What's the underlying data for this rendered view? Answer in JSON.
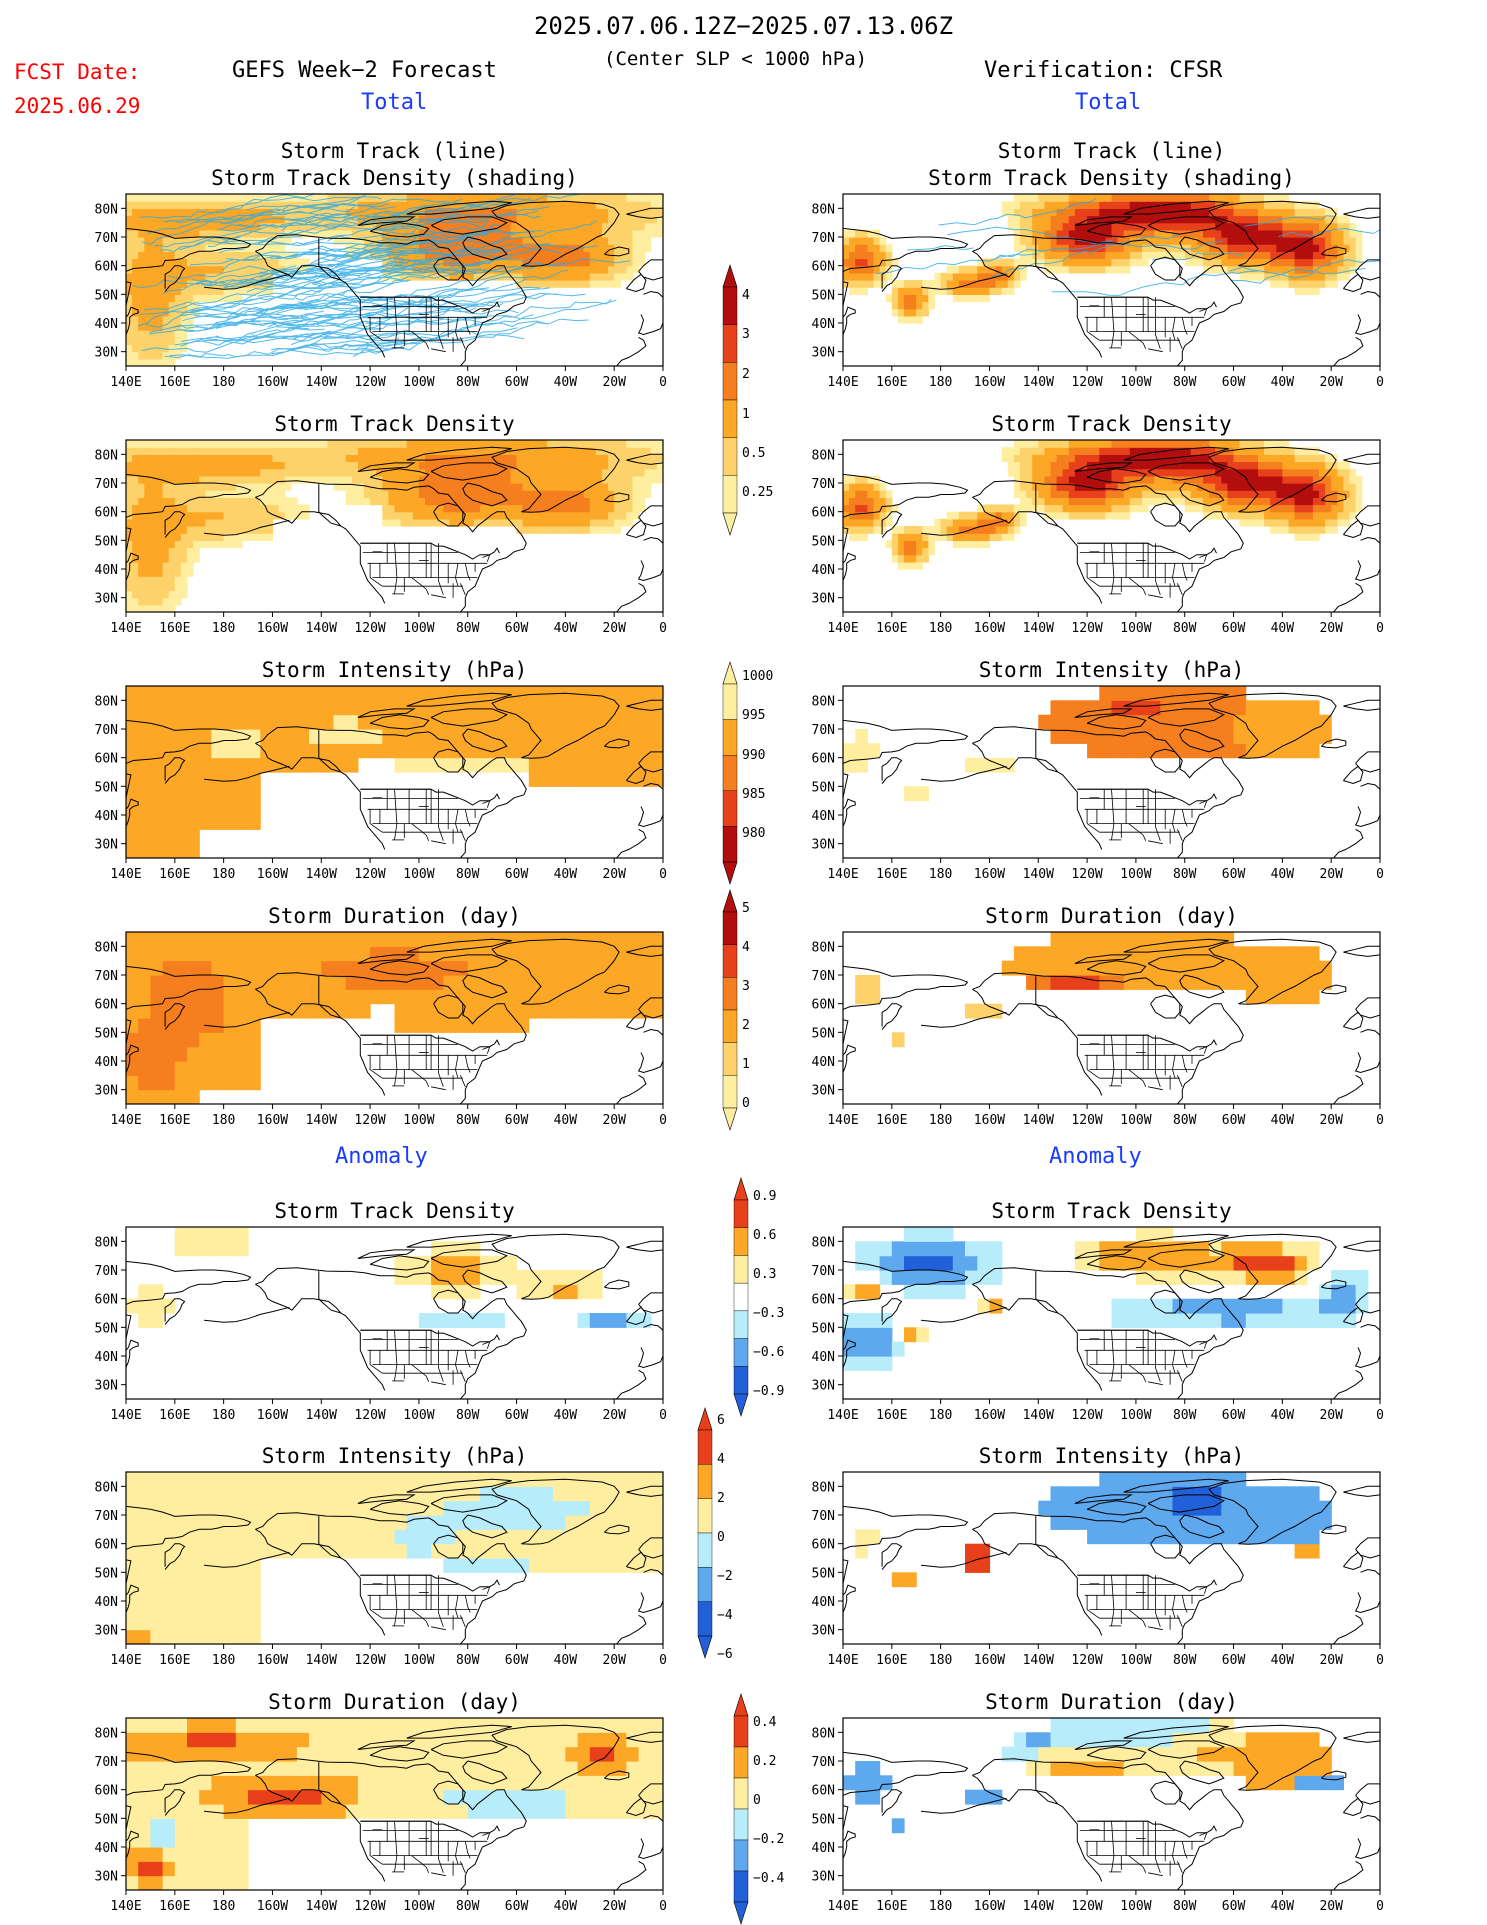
{
  "header": {
    "date_range": "2025.07.06.12Z−2025.07.13.06Z",
    "fcst_label": "FCST Date:",
    "fcst_date": "2025.06.29",
    "left_title": "GEFS Week−2 Forecast",
    "center_sub": "(Center SLP < 1000 hPa)",
    "right_title": "Verification: CFSR"
  },
  "sections": {
    "total": "Total",
    "anomaly": "Anomaly"
  },
  "colors": {
    "yellow": "#ffeea0",
    "lightorange": "#fdd26a",
    "orange": "#fca726",
    "darkorange": "#f57e1e",
    "red": "#e8401a",
    "darkred": "#b30e0e",
    "lightblue": "#b7ecfb",
    "midblue": "#5ea8ee",
    "blue": "#2160d8",
    "track_line": "#29a9e6"
  },
  "chart_data": [
    {
      "id": "tl-fcst",
      "type": "heatmap",
      "title": "Storm Track (line)",
      "subtitle": "Storm Track Density (shading)",
      "source": "GEFS",
      "section": "Total",
      "xlabels": [
        "140E",
        "160E",
        "180",
        "160W",
        "140W",
        "120W",
        "100W",
        "80W",
        "60W",
        "40W",
        "20W",
        "0"
      ],
      "ylabels": [
        "80N",
        "70N",
        "60N",
        "50N",
        "40N",
        "30N"
      ],
      "field": "track_fcst"
    },
    {
      "id": "tl-obs",
      "type": "heatmap",
      "title": "Storm Track (line)",
      "subtitle": "Storm Track Density (shading)",
      "source": "CFSR",
      "section": "Total",
      "xlabels": [
        "140E",
        "160E",
        "180",
        "160W",
        "140W",
        "120W",
        "100W",
        "80W",
        "60W",
        "40W",
        "20W",
        "0"
      ],
      "ylabels": [
        "80N",
        "70N",
        "60N",
        "50N",
        "40N",
        "30N"
      ],
      "field": "track_obs"
    },
    {
      "id": "den-fcst",
      "type": "heatmap",
      "title": "Storm Track Density",
      "xlabels": [
        "140E",
        "160E",
        "180",
        "160W",
        "140W",
        "120W",
        "100W",
        "80W",
        "60W",
        "40W",
        "20W",
        "0"
      ],
      "ylabels": [
        "80N",
        "70N",
        "60N",
        "50N",
        "40N",
        "30N"
      ]
    },
    {
      "id": "den-obs",
      "type": "heatmap",
      "title": "Storm Track Density",
      "xlabels": [
        "140E",
        "160E",
        "180",
        "160W",
        "140W",
        "120W",
        "100W",
        "80W",
        "60W",
        "40W",
        "20W",
        "0"
      ],
      "ylabels": [
        "80N",
        "70N",
        "60N",
        "50N",
        "40N",
        "30N"
      ]
    },
    {
      "id": "int-fcst",
      "type": "heatmap",
      "title": "Storm Intensity (hPa)",
      "xlabels": [
        "140E",
        "160E",
        "180",
        "160W",
        "140W",
        "120W",
        "100W",
        "80W",
        "60W",
        "40W",
        "20W",
        "0"
      ],
      "ylabels": [
        "80N",
        "70N",
        "60N",
        "50N",
        "40N",
        "30N"
      ]
    },
    {
      "id": "int-obs",
      "type": "heatmap",
      "title": "Storm Intensity (hPa)",
      "xlabels": [
        "140E",
        "160E",
        "180",
        "160W",
        "140W",
        "120W",
        "100W",
        "80W",
        "60W",
        "40W",
        "20W",
        "0"
      ],
      "ylabels": [
        "80N",
        "70N",
        "60N",
        "50N",
        "40N",
        "30N"
      ]
    },
    {
      "id": "dur-fcst",
      "type": "heatmap",
      "title": "Storm Duration (day)",
      "xlabels": [
        "140E",
        "160E",
        "180",
        "160W",
        "140W",
        "120W",
        "100W",
        "80W",
        "60W",
        "40W",
        "20W",
        "0"
      ],
      "ylabels": [
        "80N",
        "70N",
        "60N",
        "50N",
        "40N",
        "30N"
      ]
    },
    {
      "id": "dur-obs",
      "type": "heatmap",
      "title": "Storm Duration (day)",
      "xlabels": [
        "140E",
        "160E",
        "180",
        "160W",
        "140W",
        "120W",
        "100W",
        "80W",
        "60W",
        "40W",
        "20W",
        "0"
      ],
      "ylabels": [
        "80N",
        "70N",
        "60N",
        "50N",
        "40N",
        "30N"
      ]
    },
    {
      "id": "aden-fcst",
      "type": "heatmap",
      "title": "Storm Track Density",
      "section": "Anomaly",
      "xlabels": [
        "140E",
        "160E",
        "180",
        "160W",
        "140W",
        "120W",
        "100W",
        "80W",
        "60W",
        "40W",
        "20W",
        "0"
      ],
      "ylabels": [
        "80N",
        "70N",
        "60N",
        "50N",
        "40N",
        "30N"
      ]
    },
    {
      "id": "aden-obs",
      "type": "heatmap",
      "title": "Storm Track Density",
      "section": "Anomaly",
      "xlabels": [
        "140E",
        "160E",
        "180",
        "160W",
        "140W",
        "120W",
        "100W",
        "80W",
        "60W",
        "40W",
        "20W",
        "0"
      ],
      "ylabels": [
        "80N",
        "70N",
        "60N",
        "50N",
        "40N",
        "30N"
      ]
    },
    {
      "id": "aint-fcst",
      "type": "heatmap",
      "title": "Storm Intensity (hPa)",
      "xlabels": [
        "140E",
        "160E",
        "180",
        "160W",
        "140W",
        "120W",
        "100W",
        "80W",
        "60W",
        "40W",
        "20W",
        "0"
      ],
      "ylabels": [
        "80N",
        "70N",
        "60N",
        "50N",
        "40N",
        "30N"
      ]
    },
    {
      "id": "aint-obs",
      "type": "heatmap",
      "title": "Storm Intensity (hPa)",
      "xlabels": [
        "140E",
        "160E",
        "180",
        "160W",
        "140W",
        "120W",
        "100W",
        "80W",
        "60W",
        "40W",
        "20W",
        "0"
      ],
      "ylabels": [
        "80N",
        "70N",
        "60N",
        "50N",
        "40N",
        "30N"
      ]
    },
    {
      "id": "adur-fcst",
      "type": "heatmap",
      "title": "Storm Duration (day)",
      "xlabels": [
        "140E",
        "160E",
        "180",
        "160W",
        "140W",
        "120W",
        "100W",
        "80W",
        "60W",
        "40W",
        "20W",
        "0"
      ],
      "ylabels": [
        "80N",
        "70N",
        "60N",
        "50N",
        "40N",
        "30N"
      ]
    },
    {
      "id": "adur-obs",
      "type": "heatmap",
      "title": "Storm Duration (day)",
      "xlabels": [
        "140E",
        "160E",
        "180",
        "160W",
        "140W",
        "120W",
        "100W",
        "80W",
        "60W",
        "40W",
        "20W",
        "0"
      ],
      "ylabels": [
        "80N",
        "70N",
        "60N",
        "50N",
        "40N",
        "30N"
      ]
    }
  ],
  "colorbars": [
    {
      "id": "cb-density",
      "labels": [
        "4",
        "3",
        "2",
        "1",
        "0.5",
        "0.25"
      ],
      "colors": [
        "#b30e0e",
        "#e8401a",
        "#f57e1e",
        "#fca726",
        "#fdd26a",
        "#ffeea0"
      ]
    },
    {
      "id": "cb-intensity",
      "labels": [
        "1000",
        "995",
        "990",
        "985",
        "980"
      ],
      "colors": [
        "#ffeea0",
        "#fca726",
        "#f57e1e",
        "#e8401a",
        "#b30e0e"
      ]
    },
    {
      "id": "cb-duration",
      "labels": [
        "5",
        "4",
        "3",
        "2",
        "1",
        "0"
      ],
      "colors": [
        "#b30e0e",
        "#e8401a",
        "#f57e1e",
        "#fca726",
        "#fdd26a",
        "#ffeea0"
      ]
    },
    {
      "id": "cb-anom-density",
      "labels": [
        "0.9",
        "0.6",
        "0.3",
        "−0.3",
        "−0.6",
        "−0.9"
      ],
      "colors": [
        "#e8401a",
        "#fca726",
        "#ffeea0",
        "#ffffff",
        "#b7ecfb",
        "#5ea8ee",
        "#2160d8"
      ]
    },
    {
      "id": "cb-anom-intensity",
      "labels": [
        "6",
        "4",
        "2",
        "0",
        "−2",
        "−4",
        "−6"
      ],
      "colors": [
        "#e8401a",
        "#fca726",
        "#ffeea0",
        "#b7ecfb",
        "#5ea8ee",
        "#2160d8"
      ]
    },
    {
      "id": "cb-anom-duration",
      "labels": [
        "0.4",
        "0.2",
        "0",
        "−0.2",
        "−0.4"
      ],
      "colors": [
        "#e8401a",
        "#fca726",
        "#ffeea0",
        "#b7ecfb",
        "#5ea8ee",
        "#2160d8"
      ]
    }
  ]
}
